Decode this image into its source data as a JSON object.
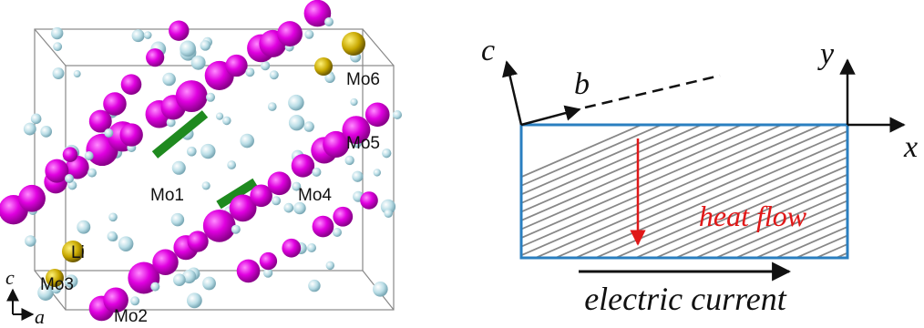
{
  "left_panel": {
    "labels": [
      "Mo6",
      "Mo5",
      "Mo4",
      "Mo1",
      "Li",
      "Mo3",
      "Mo2"
    ],
    "axes": [
      "c",
      "a"
    ]
  },
  "right_panel": {
    "axes": [
      "c",
      "b",
      "y",
      "x"
    ],
    "heat_flow": "heat flow",
    "electric_current": "electric current"
  }
}
